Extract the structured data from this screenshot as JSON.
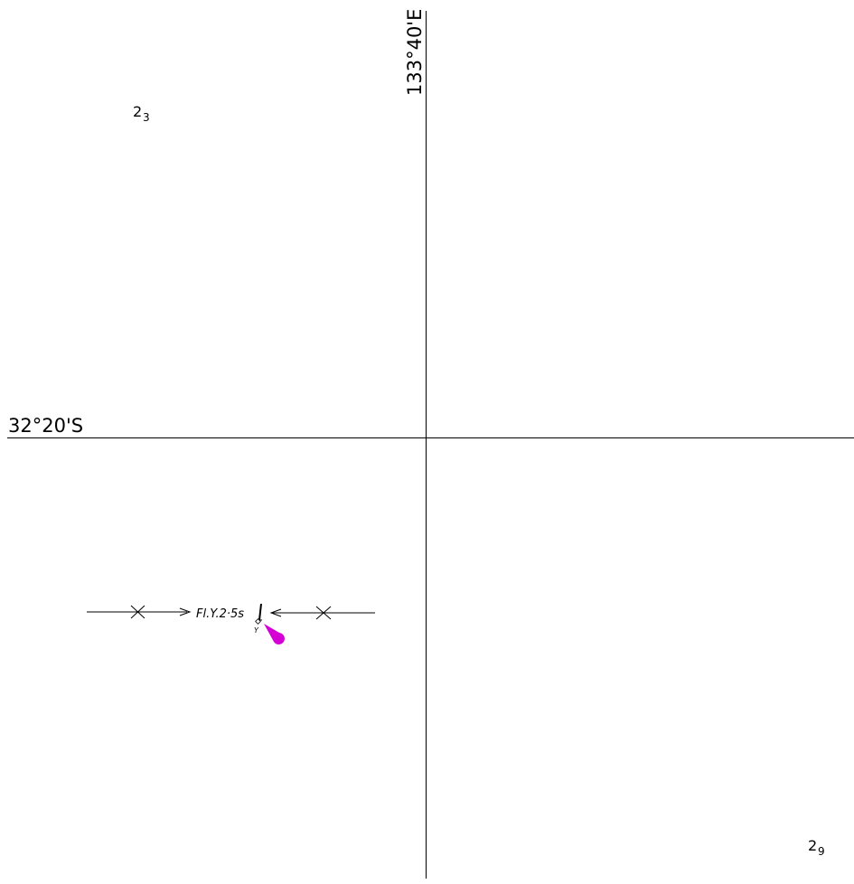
{
  "graticule": {
    "latitude_label": "32°20'S",
    "longitude_label": "133°40'E"
  },
  "soundings": [
    {
      "depth": "2",
      "fraction": "3"
    },
    {
      "depth": "2",
      "fraction": "9"
    }
  ],
  "navigation_aid": {
    "light_characteristic": "Fl.Y.2·5s",
    "buoy_color": "Y",
    "light_flare_color": "#d400d4"
  },
  "colors": {
    "line": "#000000",
    "background": "#ffffff"
  }
}
